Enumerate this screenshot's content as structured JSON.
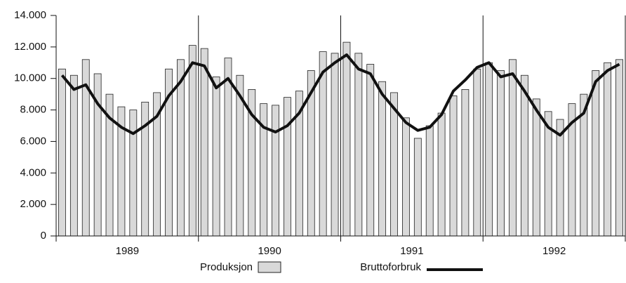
{
  "chart_data": {
    "type": "bar_line",
    "categories": [
      null,
      null,
      null,
      null,
      null,
      null,
      null,
      null,
      null,
      null,
      null,
      null,
      null,
      null,
      null,
      null,
      null,
      null,
      null,
      null,
      null,
      null,
      null,
      null,
      null,
      null,
      null,
      null,
      null,
      null,
      null,
      null,
      null,
      null,
      null,
      null,
      null,
      null,
      null,
      null,
      null,
      null,
      null,
      null,
      null,
      null,
      null,
      null
    ],
    "year_labels": [
      "1989",
      "1990",
      "1991",
      "1992"
    ],
    "series": [
      {
        "name": "Produksjon",
        "type": "bar",
        "color": "#d9d9d9",
        "values": [
          10600,
          10200,
          11200,
          10300,
          9000,
          8200,
          8000,
          8500,
          9100,
          10600,
          11200,
          12100,
          11900,
          10100,
          11300,
          10200,
          9300,
          8400,
          8300,
          8800,
          9200,
          10500,
          11700,
          11600,
          12300,
          11600,
          10900,
          9800,
          9100,
          7500,
          6200,
          7000,
          7800,
          8900,
          9300,
          10600,
          11000,
          10500,
          11200,
          10200,
          8700,
          7900,
          7400,
          8400,
          9000,
          10500,
          11000,
          11200
        ]
      },
      {
        "name": "Bruttoforbruk",
        "type": "line",
        "color": "#111111",
        "values": [
          10200,
          9300,
          9600,
          8400,
          7500,
          6900,
          6500,
          7000,
          7600,
          8900,
          9800,
          11000,
          10800,
          9400,
          10000,
          8900,
          7700,
          6900,
          6600,
          7000,
          7800,
          9100,
          10400,
          11000,
          11500,
          10600,
          10300,
          9000,
          8100,
          7200,
          6700,
          6900,
          7700,
          9200,
          9900,
          10700,
          11000,
          10100,
          10300,
          9200,
          8000,
          6900,
          6400,
          7200,
          7800,
          9800,
          10500,
          10900
        ]
      }
    ],
    "ylim": [
      0,
      14000
    ],
    "yticks": [
      0,
      {
        "value": 2000,
        "label": "2.000"
      },
      {
        "value": 4000,
        "label": "4.000"
      },
      {
        "value": 6000,
        "label": "6.000"
      },
      {
        "value": 8000,
        "label": "8.000"
      },
      {
        "value": 10000,
        "label": "10.000"
      },
      {
        "value": 12000,
        "label": "12.000"
      },
      {
        "value": 14000,
        "label": "14.000"
      }
    ]
  }
}
